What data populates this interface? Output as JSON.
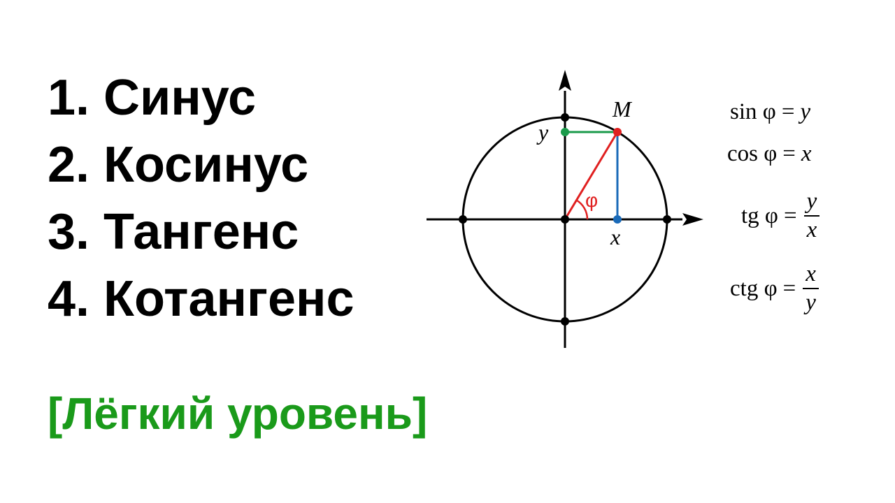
{
  "topics": [
    {
      "label": "1. Синус"
    },
    {
      "label": "2. Косинус"
    },
    {
      "label": "3. Тангенс"
    },
    {
      "label": "4. Котангенс"
    }
  ],
  "level_label": "[Лёгкий уровень]",
  "diagram": {
    "point_label": "M",
    "y_label": "y",
    "x_label": "x",
    "angle_label": "φ",
    "colors": {
      "radius": "#e02020",
      "sine": "#1a9a4a",
      "cosine": "#1a6ab8",
      "axes": "#000000",
      "level_text": "#1a9a1a"
    }
  },
  "formulas": {
    "sin": {
      "func": "sin φ",
      "eq": "=",
      "rhs": "y"
    },
    "cos": {
      "func": "cos φ",
      "eq": "=",
      "rhs": "x"
    },
    "tg": {
      "func": "tg φ",
      "eq": "=",
      "num": "y",
      "den": "x"
    },
    "ctg": {
      "func": "ctg φ",
      "eq": "=",
      "num": "x",
      "den": "y"
    }
  }
}
